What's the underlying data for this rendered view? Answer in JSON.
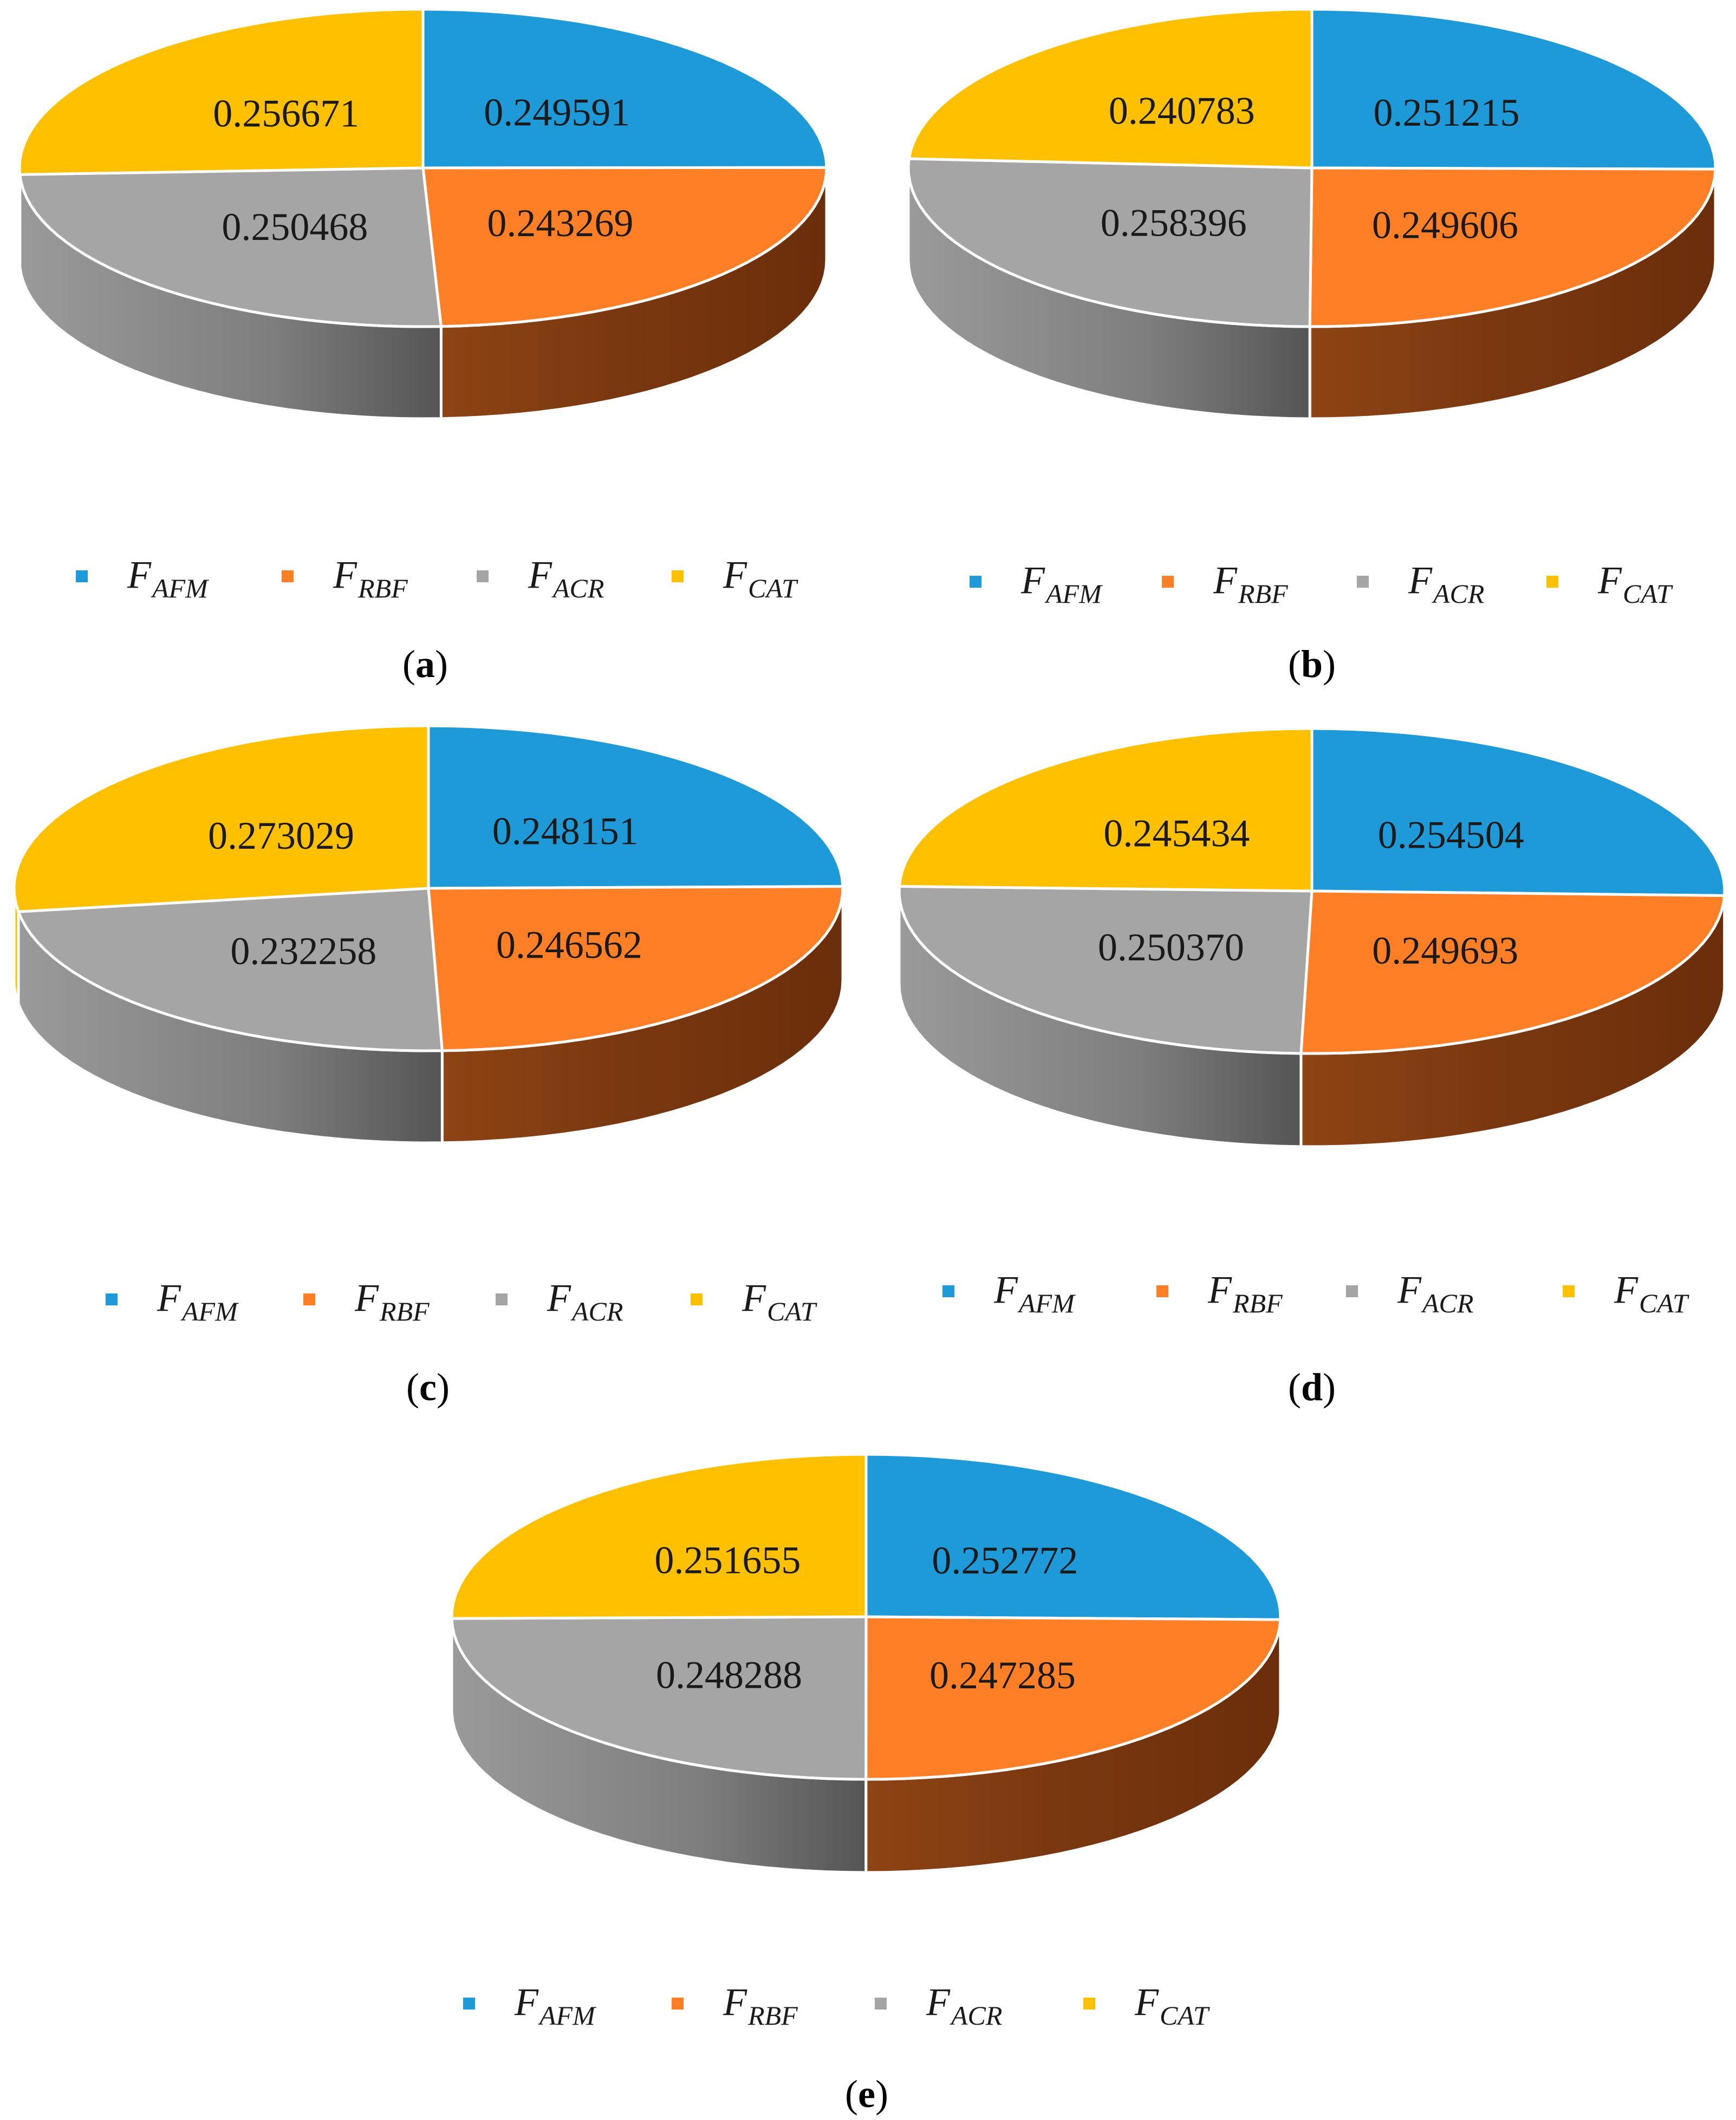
{
  "figure": {
    "colors": {
      "F_AFM": "#1E9AD8",
      "F_RBF": "#FF7F27",
      "F_ACR": "#A5A5A5",
      "F_CAT": "#FFC000",
      "side_orange_dark": "#6B2E0A",
      "side_orange_light": "#8E4414",
      "side_gray_dark": "#555555",
      "side_gray_light": "#9A9A9A"
    },
    "legend": [
      {
        "key": "F_AFM",
        "base": "F",
        "sub": "AFM"
      },
      {
        "key": "F_RBF",
        "base": "F",
        "sub": "RBF"
      },
      {
        "key": "F_ACR",
        "base": "F",
        "sub": "ACR"
      },
      {
        "key": "F_CAT",
        "base": "F",
        "sub": "CAT"
      }
    ]
  },
  "chart_data": [
    {
      "panel": "a",
      "caption_open": "(",
      "caption_letter": "a",
      "caption_close": ")",
      "type": "pie",
      "series": [
        "F_AFM",
        "F_RBF",
        "F_ACR",
        "F_CAT"
      ],
      "values": [
        0.249591,
        0.243269,
        0.250468,
        0.256671
      ],
      "labels": [
        "0.249591",
        "0.243269",
        "0.250468",
        "0.256671"
      ]
    },
    {
      "panel": "b",
      "caption_open": "(",
      "caption_letter": "b",
      "caption_close": ")",
      "type": "pie",
      "series": [
        "F_AFM",
        "F_RBF",
        "F_ACR",
        "F_CAT"
      ],
      "values": [
        0.251215,
        0.249606,
        0.258396,
        0.240783
      ],
      "labels": [
        "0.251215",
        "0.249606",
        "0.258396",
        "0.240783"
      ]
    },
    {
      "panel": "c",
      "caption_open": "(",
      "caption_letter": "c",
      "caption_close": ")",
      "type": "pie",
      "series": [
        "F_AFM",
        "F_RBF",
        "F_ACR",
        "F_CAT"
      ],
      "values": [
        0.248151,
        0.246562,
        0.232258,
        0.273029
      ],
      "labels": [
        "0.248151",
        "0.246562",
        "0.232258",
        "0.273029"
      ]
    },
    {
      "panel": "d",
      "caption_open": "(",
      "caption_letter": "d",
      "caption_close": ")",
      "type": "pie",
      "series": [
        "F_AFM",
        "F_RBF",
        "F_ACR",
        "F_CAT"
      ],
      "values": [
        0.254504,
        0.249693,
        0.25037,
        0.245434
      ],
      "labels": [
        "0.254504",
        "0.249693",
        "0.250370",
        "0.245434"
      ]
    },
    {
      "panel": "e",
      "caption_open": "(",
      "caption_letter": "e",
      "caption_close": ")",
      "type": "pie",
      "series": [
        "F_AFM",
        "F_RBF",
        "F_ACR",
        "F_CAT"
      ],
      "values": [
        0.252772,
        0.247285,
        0.248288,
        0.251655
      ],
      "labels": [
        "0.252772",
        "0.247285",
        "0.248288",
        "0.251655"
      ]
    }
  ]
}
